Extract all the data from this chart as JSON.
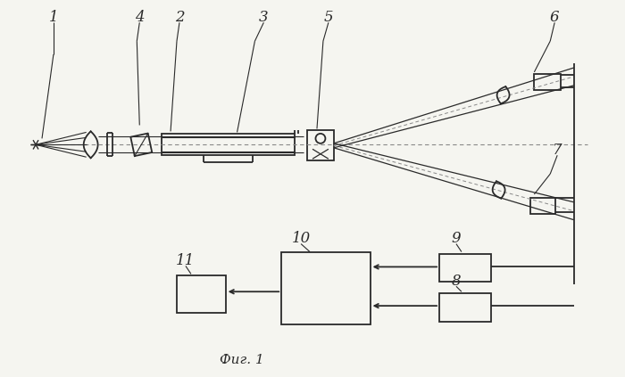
{
  "bg_color": "#f5f5f0",
  "line_color": "#2a2a2a",
  "fig_width": 7.0,
  "fig_height": 4.23,
  "dpi": 100
}
